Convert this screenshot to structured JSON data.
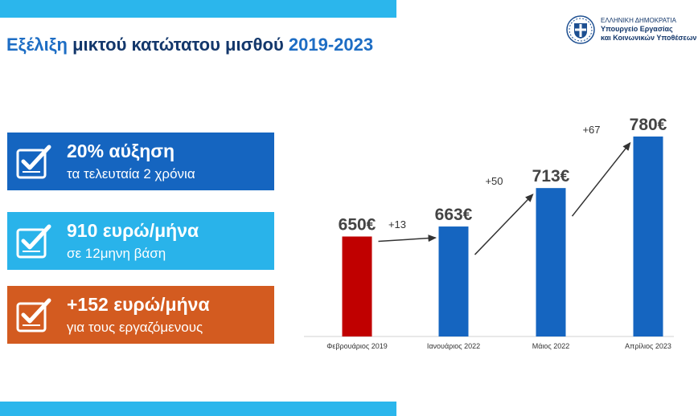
{
  "header": {
    "title_part1": "Εξέλιξη",
    "title_part2": " μικτού κατώτατου μισθού ",
    "title_part3": "2019-2023"
  },
  "logo": {
    "line1": "ΕΛΛΗΝΙΚΗ ΔΗΜΟΚΡΑΤΙΑ",
    "line2": "Υπουργείο Εργασίας",
    "line3": "και Κοινωνικών Υποθέσεων",
    "icon": "greek-emblem-icon"
  },
  "highlights": [
    {
      "main": "20% αύξηση",
      "sub": "τα τελευταία 2 χρόνια",
      "icon": "checklist-icon",
      "color": "#1565c0"
    },
    {
      "main": "910 ευρώ/μήνα",
      "sub": "σε 12μηνη βάση",
      "icon": "checklist-icon",
      "color": "#29b3ea"
    },
    {
      "main": "+152 ευρώ/μήνα",
      "sub": "για τους εργαζόμενους",
      "icon": "checklist-icon",
      "color": "#d35b20"
    }
  ],
  "colors": {
    "accent_bar": "#2bb6ec",
    "title_dark": "#13376b",
    "title_blue": "#1d6dc4",
    "bar_red": "#c00000",
    "bar_blue": "#1565c0"
  },
  "chart_data": {
    "type": "bar",
    "categories": [
      "Φεβρουάριος 2019",
      "Ιανουάριος 2022",
      "Μάιος 2022",
      "Απρίλιος 2023"
    ],
    "values": [
      650,
      663,
      713,
      780
    ],
    "value_labels": [
      "650€",
      "663€",
      "713€",
      "780€"
    ],
    "bar_colors": [
      "#c00000",
      "#1565c0",
      "#1565c0",
      "#1565c0"
    ],
    "increments": [
      "+13",
      "+50",
      "+67"
    ],
    "ylim": [
      520,
      780
    ],
    "grid": false,
    "legend": "none"
  }
}
